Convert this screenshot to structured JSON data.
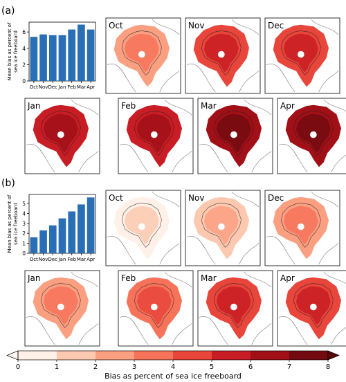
{
  "panels": [
    {
      "label": "(a)",
      "chart_data": {
        "type": "bar",
        "categories": [
          "Oct",
          "Nov",
          "Dec",
          "Jan",
          "Feb",
          "Mar",
          "Apr"
        ],
        "values": [
          5.4,
          5.7,
          5.6,
          5.6,
          6.3,
          6.9,
          6.3
        ],
        "ylabel": "Mean bias as percent of sea ice freeboard",
        "ylim": [
          0,
          7.2
        ],
        "yticks": [
          0,
          2,
          4,
          6
        ],
        "color": "#2a6fb5"
      },
      "maps": [
        {
          "month": "Oct",
          "level": 2.0
        },
        {
          "month": "Nov",
          "level": 4.6
        },
        {
          "month": "Dec",
          "level": 4.8
        },
        {
          "month": "Jan",
          "level": 5.0
        },
        {
          "month": "Feb",
          "level": 5.8
        },
        {
          "month": "Mar",
          "level": 6.6
        },
        {
          "month": "Apr",
          "level": 6.8
        }
      ]
    },
    {
      "label": "(b)",
      "chart_data": {
        "type": "bar",
        "categories": [
          "Oct",
          "Nov",
          "Dec",
          "Jan",
          "Feb",
          "Mar",
          "Apr"
        ],
        "values": [
          1.6,
          2.3,
          2.8,
          3.5,
          4.2,
          4.9,
          5.6
        ],
        "ylabel": "Mean bias as percent of sea ice freeboard",
        "ylim": [
          0,
          5.9
        ],
        "yticks": [
          0,
          1,
          2,
          3,
          4,
          5
        ],
        "color": "#2a6fb5"
      },
      "maps": [
        {
          "month": "Oct",
          "level": 0.5
        },
        {
          "month": "Nov",
          "level": 1.6
        },
        {
          "month": "Dec",
          "level": 2.0
        },
        {
          "month": "Jan",
          "level": 2.6
        },
        {
          "month": "Feb",
          "level": 3.2
        },
        {
          "month": "Mar",
          "level": 4.0
        },
        {
          "month": "Apr",
          "level": 4.8
        }
      ]
    }
  ],
  "colorbar": {
    "label": "Bias as percent of sea ice freeboard",
    "ticks": [
      "0",
      "1",
      "2",
      "3",
      "4",
      "5",
      "6",
      "7",
      "8"
    ],
    "colors": [
      "#fff0e8",
      "#fcc9b0",
      "#fb9f81",
      "#f6735a",
      "#e8453b",
      "#c81d25",
      "#a10f17",
      "#730a0f"
    ]
  }
}
